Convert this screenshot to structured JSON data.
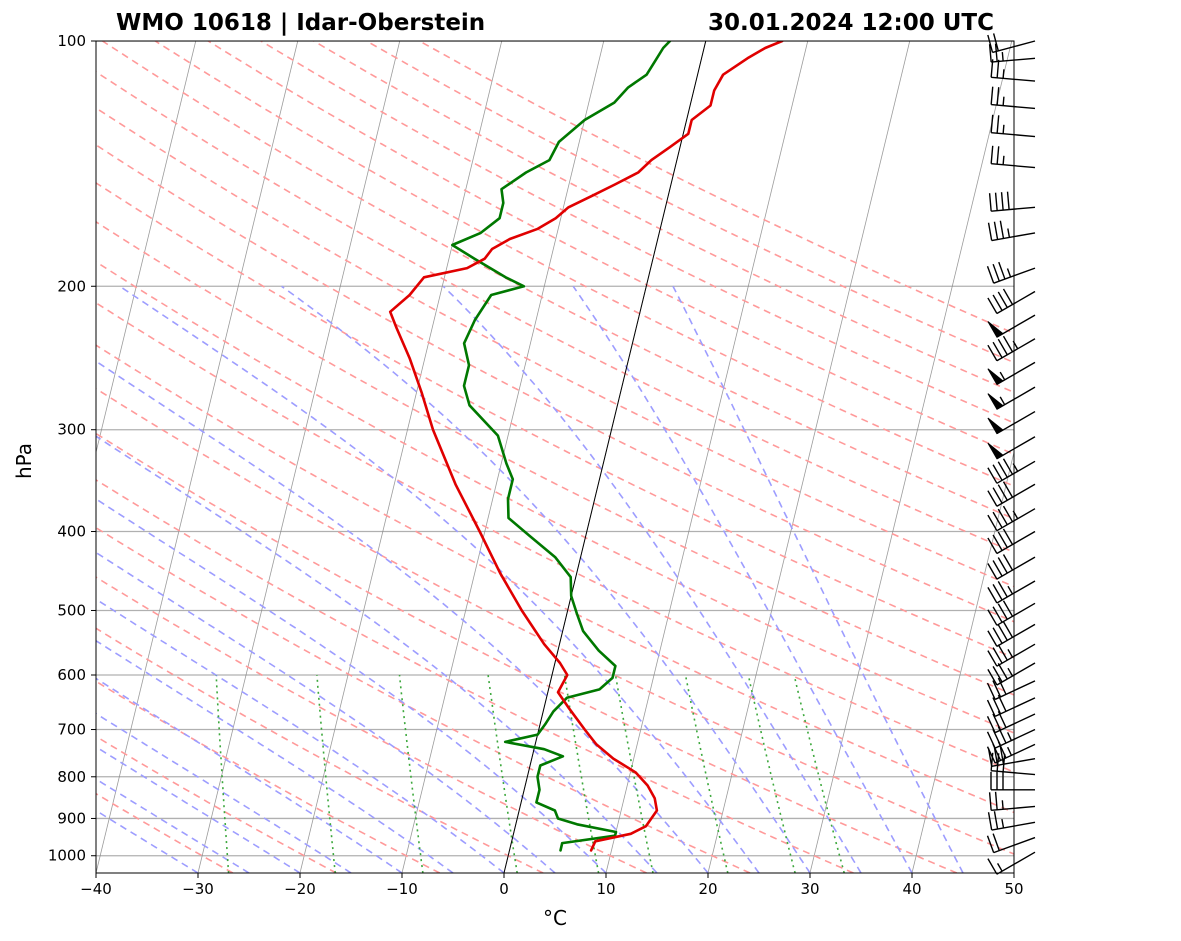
{
  "chart_data": {
    "type": "line",
    "subtype": "skew-t log-p diagram",
    "title_left": "WMO 10618 | Idar-Oberstein",
    "title_right": "30.01.2024 12:00 UTC",
    "xlabel": "°C",
    "ylabel": "hPa",
    "xlim": [
      -40,
      50
    ],
    "ylim": [
      1050,
      100
    ],
    "y_scale": "log",
    "x_ticks": [
      -40,
      -30,
      -20,
      -10,
      0,
      10,
      20,
      30,
      40,
      50
    ],
    "x_tick_labels": [
      "−40",
      "−30",
      "−20",
      "−10",
      "0",
      "10",
      "20",
      "30",
      "40",
      "50"
    ],
    "y_ticks": [
      1000,
      900,
      800,
      700,
      600,
      500,
      400,
      300,
      200,
      100
    ],
    "y_tick_labels": [
      "1000",
      "900",
      "800",
      "700",
      "600",
      "500",
      "400",
      "300",
      "200",
      "100"
    ],
    "grid": true,
    "colors": {
      "temperature": "#e00000",
      "dewpoint": "#007800",
      "dry_adiabats": "#ff9a9a",
      "moist_adiabats": "#9d9dff",
      "mixing_ratio": "#3da83d",
      "isotherms": "#8a8a8a",
      "zero_isotherm": "#000000"
    },
    "series": [
      {
        "name": "Temperature",
        "points": [
          [
            8.0,
            985
          ],
          [
            8.2,
            960
          ],
          [
            11.5,
            940
          ],
          [
            12.8,
            920
          ],
          [
            13.5,
            880
          ],
          [
            13.0,
            850
          ],
          [
            12.0,
            820
          ],
          [
            10.5,
            790
          ],
          [
            8.0,
            760
          ],
          [
            6.0,
            730
          ],
          [
            4.5,
            700
          ],
          [
            2.5,
            660
          ],
          [
            1.0,
            630
          ],
          [
            1.5,
            600
          ],
          [
            0.5,
            580
          ],
          [
            -1.5,
            550
          ],
          [
            -4.5,
            500
          ],
          [
            -7.5,
            450
          ],
          [
            -10.5,
            400
          ],
          [
            -14,
            350
          ],
          [
            -17.5,
            300
          ],
          [
            -19.5,
            270
          ],
          [
            -21.5,
            245
          ],
          [
            -23.5,
            225
          ],
          [
            -24.5,
            215
          ],
          [
            -23,
            205
          ],
          [
            -22,
            195
          ],
          [
            -18,
            190
          ],
          [
            -16.5,
            185
          ],
          [
            -16.0,
            180
          ],
          [
            -14.5,
            175
          ],
          [
            -12,
            170
          ],
          [
            -10.5,
            165
          ],
          [
            -9.5,
            160
          ],
          [
            -7.5,
            155
          ],
          [
            -5.5,
            150
          ],
          [
            -3.5,
            145
          ],
          [
            -2.5,
            140
          ],
          [
            -1.0,
            135
          ],
          [
            0.5,
            130
          ],
          [
            0.5,
            125
          ],
          [
            2.0,
            120
          ],
          [
            2.0,
            115
          ],
          [
            2.5,
            110
          ],
          [
            4.5,
            105
          ],
          [
            6.0,
            102
          ],
          [
            7.5,
            100
          ]
        ]
      },
      {
        "name": "Dew point",
        "points": [
          [
            5.0,
            985
          ],
          [
            5.0,
            965
          ],
          [
            10.0,
            945
          ],
          [
            10.0,
            935
          ],
          [
            6.0,
            915
          ],
          [
            4.0,
            900
          ],
          [
            3.5,
            880
          ],
          [
            1.5,
            860
          ],
          [
            1.5,
            830
          ],
          [
            1.0,
            800
          ],
          [
            1.0,
            775
          ],
          [
            3.0,
            755
          ],
          [
            1.0,
            740
          ],
          [
            -3.0,
            725
          ],
          [
            0.0,
            710
          ],
          [
            0.5,
            690
          ],
          [
            1.0,
            665
          ],
          [
            2.0,
            640
          ],
          [
            5.0,
            625
          ],
          [
            6.0,
            605
          ],
          [
            6.0,
            585
          ],
          [
            4.0,
            560
          ],
          [
            2.0,
            530
          ],
          [
            1.0,
            505
          ],
          [
            0.0,
            480
          ],
          [
            -0.5,
            455
          ],
          [
            -2.5,
            430
          ],
          [
            -5.5,
            405
          ],
          [
            -8.0,
            385
          ],
          [
            -8.5,
            365
          ],
          [
            -8.5,
            345
          ],
          [
            -9.5,
            330
          ],
          [
            -11.0,
            305
          ],
          [
            -14.5,
            280
          ],
          [
            -15.5,
            265
          ],
          [
            -15.5,
            250
          ],
          [
            -16.5,
            235
          ],
          [
            -16.0,
            220
          ],
          [
            -15.0,
            205
          ],
          [
            -12.0,
            200
          ],
          [
            -14.0,
            195
          ],
          [
            -17.5,
            185
          ],
          [
            -20.0,
            178
          ],
          [
            -17.5,
            172
          ],
          [
            -16.0,
            165
          ],
          [
            -16.0,
            158
          ],
          [
            -16.5,
            152
          ],
          [
            -14.5,
            145
          ],
          [
            -12.5,
            140
          ],
          [
            -12.0,
            133
          ],
          [
            -10.0,
            125
          ],
          [
            -7.5,
            119
          ],
          [
            -6.5,
            114
          ],
          [
            -5.0,
            110
          ],
          [
            -4.5,
            106
          ],
          [
            -4.0,
            102
          ],
          [
            -3.5,
            100
          ]
        ]
      }
    ],
    "wind_barbs": [
      {
        "p": 990,
        "dir": 240,
        "kt": 15
      },
      {
        "p": 950,
        "dir": 250,
        "kt": 20
      },
      {
        "p": 910,
        "dir": 260,
        "kt": 25
      },
      {
        "p": 870,
        "dir": 265,
        "kt": 25
      },
      {
        "p": 830,
        "dir": 270,
        "kt": 30
      },
      {
        "p": 795,
        "dir": 275,
        "kt": 30
      },
      {
        "p": 760,
        "dir": 260,
        "kt": 30
      },
      {
        "p": 730,
        "dir": 245,
        "kt": 35
      },
      {
        "p": 700,
        "dir": 245,
        "kt": 35
      },
      {
        "p": 670,
        "dir": 245,
        "kt": 30
      },
      {
        "p": 640,
        "dir": 245,
        "kt": 30
      },
      {
        "p": 610,
        "dir": 245,
        "kt": 30
      },
      {
        "p": 580,
        "dir": 240,
        "kt": 35
      },
      {
        "p": 550,
        "dir": 240,
        "kt": 35
      },
      {
        "p": 520,
        "dir": 240,
        "kt": 40
      },
      {
        "p": 490,
        "dir": 240,
        "kt": 40
      },
      {
        "p": 460,
        "dir": 240,
        "kt": 35
      },
      {
        "p": 430,
        "dir": 240,
        "kt": 40
      },
      {
        "p": 400,
        "dir": 240,
        "kt": 40
      },
      {
        "p": 375,
        "dir": 240,
        "kt": 45
      },
      {
        "p": 350,
        "dir": 240,
        "kt": 40
      },
      {
        "p": 328,
        "dir": 240,
        "kt": 45
      },
      {
        "p": 306,
        "dir": 240,
        "kt": 50
      },
      {
        "p": 285,
        "dir": 240,
        "kt": 50
      },
      {
        "p": 266,
        "dir": 240,
        "kt": 55
      },
      {
        "p": 248,
        "dir": 240,
        "kt": 55
      },
      {
        "p": 232,
        "dir": 240,
        "kt": 45
      },
      {
        "p": 217,
        "dir": 240,
        "kt": 50
      },
      {
        "p": 203,
        "dir": 240,
        "kt": 40
      },
      {
        "p": 190,
        "dir": 250,
        "kt": 35
      },
      {
        "p": 172,
        "dir": 260,
        "kt": 35
      },
      {
        "p": 160,
        "dir": 265,
        "kt": 40
      },
      {
        "p": 143,
        "dir": 275,
        "kt": 25
      },
      {
        "p": 131,
        "dir": 275,
        "kt": 25
      },
      {
        "p": 121,
        "dir": 275,
        "kt": 25
      },
      {
        "p": 112,
        "dir": 275,
        "kt": 25
      },
      {
        "p": 105,
        "dir": 265,
        "kt": 25
      },
      {
        "p": 100,
        "dir": 255,
        "kt": 20
      }
    ]
  }
}
